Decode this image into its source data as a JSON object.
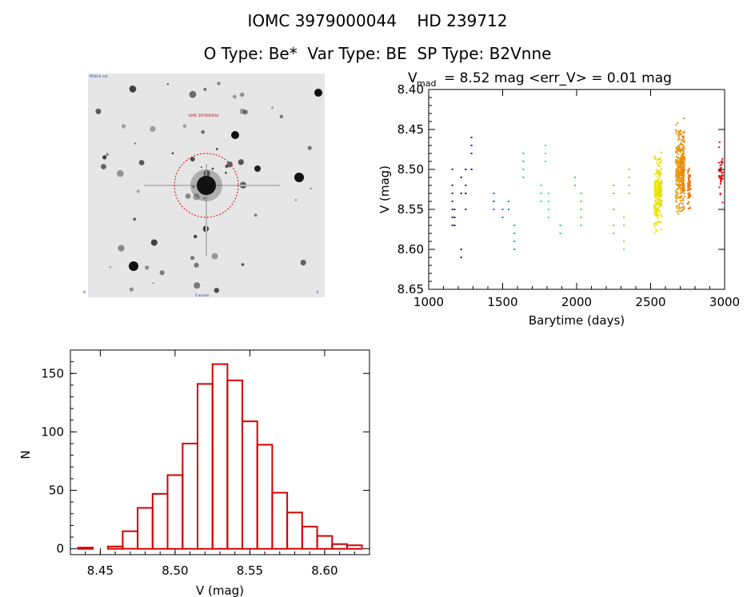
{
  "header": {
    "line1": "IOMC 3979000044    HD 239712",
    "line2": "O Type: Be*  Var Type: BE  SP Type: B2Vnne"
  },
  "finder": {
    "label_top_left": "POSS-II red",
    "label_target": "IOMC 3979000044",
    "label_bottom_center": "5 arcmin",
    "label_bottom_left": "N",
    "label_bottom_right": "E"
  },
  "chart_data": [
    {
      "type": "scatter",
      "title_prefix": "V",
      "title_sub": "mad",
      "title_rest": "= 8.52 mag <err_V> = 0.01 mag",
      "xlabel": "Barytime (days)",
      "ylabel": "V (mag)",
      "xlim": [
        1000,
        3000
      ],
      "ylim": [
        8.65,
        8.4
      ],
      "xticks": [
        1000,
        1500,
        2000,
        2500,
        3000
      ],
      "yticks": [
        8.4,
        8.45,
        8.5,
        8.55,
        8.6,
        8.65
      ],
      "color_by": "time",
      "series": [
        {
          "name": "g1160",
          "x": [
            1160,
            1160,
            1160,
            1160,
            1160,
            1160,
            1160
          ],
          "y": [
            8.5,
            8.52,
            8.53,
            8.54,
            8.55,
            8.56,
            8.57
          ]
        },
        {
          "name": "g1175",
          "x": [
            1175,
            1175,
            1175,
            1175,
            1175
          ],
          "y": [
            8.55,
            8.56,
            8.56,
            8.57,
            8.57
          ]
        },
        {
          "name": "g1220",
          "x": [
            1220,
            1220,
            1220,
            1220
          ],
          "y": [
            8.51,
            8.53,
            8.6,
            8.61
          ]
        },
        {
          "name": "g1250",
          "x": [
            1250,
            1250,
            1250,
            1250,
            1250
          ],
          "y": [
            8.5,
            8.52,
            8.53,
            8.53,
            8.55
          ]
        },
        {
          "name": "g1290",
          "x": [
            1290,
            1290,
            1290,
            1290,
            1290
          ],
          "y": [
            8.46,
            8.47,
            8.48,
            8.5,
            8.5
          ]
        },
        {
          "name": "g1440",
          "x": [
            1440,
            1440,
            1440,
            1440
          ],
          "y": [
            8.53,
            8.54,
            8.54,
            8.55
          ]
        },
        {
          "name": "g1500",
          "x": [
            1500,
            1500,
            1500,
            1500
          ],
          "y": [
            8.55,
            8.55,
            8.56,
            8.56
          ]
        },
        {
          "name": "g1540",
          "x": [
            1540,
            1540,
            1540
          ],
          "y": [
            8.54,
            8.54,
            8.55
          ]
        },
        {
          "name": "g1580",
          "x": [
            1580,
            1580,
            1580,
            1580,
            1580
          ],
          "y": [
            8.57,
            8.58,
            8.59,
            8.6,
            8.6
          ]
        },
        {
          "name": "g1640",
          "x": [
            1640,
            1640,
            1640,
            1640
          ],
          "y": [
            8.48,
            8.49,
            8.5,
            8.51
          ]
        },
        {
          "name": "g1760",
          "x": [
            1760,
            1760,
            1760,
            1760,
            1760
          ],
          "y": [
            8.52,
            8.53,
            8.53,
            8.54,
            8.54
          ]
        },
        {
          "name": "g1790",
          "x": [
            1790,
            1790,
            1790
          ],
          "y": [
            8.47,
            8.48,
            8.49
          ]
        },
        {
          "name": "g1810",
          "x": [
            1810,
            1810,
            1810,
            1810,
            1810
          ],
          "y": [
            8.53,
            8.54,
            8.55,
            8.55,
            8.56
          ]
        },
        {
          "name": "g1890",
          "x": [
            1890,
            1890,
            1890,
            1890
          ],
          "y": [
            8.57,
            8.57,
            8.58,
            8.58
          ]
        },
        {
          "name": "g1990",
          "x": [
            1990,
            1990
          ],
          "y": [
            8.51,
            8.52
          ]
        },
        {
          "name": "g2030",
          "x": [
            2030,
            2030,
            2030,
            2030,
            2030
          ],
          "y": [
            8.53,
            8.54,
            8.55,
            8.56,
            8.57
          ]
        },
        {
          "name": "g2250",
          "x": [
            2250,
            2250,
            2250,
            2250,
            2250
          ],
          "y": [
            8.52,
            8.53,
            8.55,
            8.57,
            8.58
          ]
        },
        {
          "name": "g2320",
          "x": [
            2320,
            2320,
            2320,
            2320
          ],
          "y": [
            8.56,
            8.57,
            8.59,
            8.6
          ]
        },
        {
          "name": "g2355",
          "x": [
            2355,
            2355,
            2355,
            2355
          ],
          "y": [
            8.5,
            8.51,
            8.52,
            8.53
          ]
        }
      ],
      "dense_bands": [
        {
          "x": 2550,
          "width": 50,
          "y_min": 8.47,
          "y_max": 8.59,
          "count": 260
        },
        {
          "x": 2700,
          "width": 60,
          "y_min": 8.43,
          "y_max": 8.57,
          "count": 360
        },
        {
          "x": 2760,
          "width": 20,
          "y_min": 8.48,
          "y_max": 8.56,
          "count": 60
        },
        {
          "x": 2975,
          "width": 30,
          "y_min": 8.46,
          "y_max": 8.55,
          "count": 40
        }
      ]
    },
    {
      "type": "bar",
      "title": "",
      "xlabel": "V (mag)",
      "ylabel": "N",
      "xlim": [
        8.43,
        8.63
      ],
      "ylim": [
        -5,
        170
      ],
      "xticks": [
        8.45,
        8.5,
        8.55,
        8.6
      ],
      "yticks": [
        0,
        50,
        100,
        150
      ],
      "bin_width": 0.01,
      "bin_starts": [
        8.435,
        8.445,
        8.455,
        8.465,
        8.475,
        8.485,
        8.495,
        8.505,
        8.515,
        8.525,
        8.535,
        8.545,
        8.555,
        8.565,
        8.575,
        8.585,
        8.595,
        8.605,
        8.615
      ],
      "values": [
        1,
        0,
        2,
        15,
        35,
        47,
        63,
        90,
        141,
        158,
        144,
        109,
        89,
        48,
        31,
        19,
        11,
        4,
        3
      ]
    }
  ],
  "colors": {
    "hist": "#d40000",
    "axis": "#000000",
    "finder_mark": "#e00000"
  }
}
